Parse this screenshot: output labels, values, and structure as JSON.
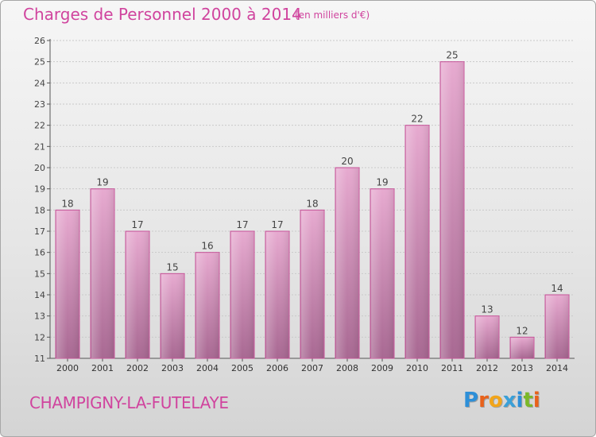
{
  "header": {
    "title": "Charges de Personnel 2000 à 2014",
    "subtitle": "(en milliers d'€)"
  },
  "footer": {
    "place": "CHAMPIGNY-LA-FUTELAYE",
    "brand": "Proxiti"
  },
  "colors": {
    "title": "#d0449e",
    "bar_light": "#e7aad0",
    "bar_dark": "#a86892",
    "bar_edge": "#c45397"
  },
  "chart_data": {
    "type": "bar",
    "categories": [
      "2000",
      "2001",
      "2002",
      "2003",
      "2004",
      "2005",
      "2006",
      "2007",
      "2008",
      "2009",
      "2010",
      "2011",
      "2012",
      "2013",
      "2014"
    ],
    "values": [
      18,
      19,
      17,
      15,
      16,
      17,
      17,
      18,
      20,
      19,
      22,
      25,
      13,
      12,
      14
    ],
    "title": "Charges de Personnel 2000 à 2014",
    "ylim": [
      11,
      26
    ],
    "yticks": [
      11,
      12,
      13,
      14,
      15,
      16,
      17,
      18,
      19,
      20,
      21,
      22,
      23,
      24,
      25,
      26
    ],
    "grid": true,
    "data_labels": true
  }
}
